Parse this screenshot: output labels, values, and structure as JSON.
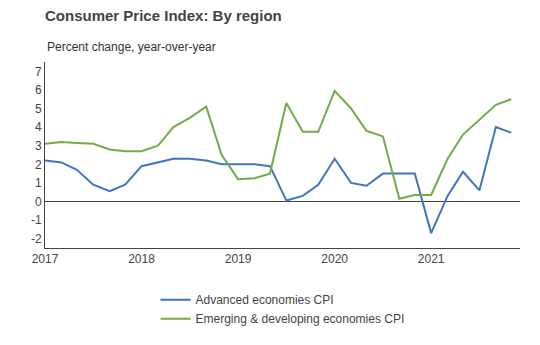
{
  "chart_data": {
    "type": "line",
    "title": "Consumer Price Index: By region",
    "subtitle": "Percent change, year-over-year",
    "x": [
      2017.0,
      2017.17,
      2017.33,
      2017.5,
      2017.67,
      2017.83,
      2018.0,
      2018.17,
      2018.33,
      2018.5,
      2018.67,
      2018.83,
      2019.0,
      2019.17,
      2019.33,
      2019.5,
      2019.67,
      2019.83,
      2020.0,
      2020.17,
      2020.33,
      2020.5,
      2020.67,
      2020.83,
      2021.0,
      2021.17,
      2021.33,
      2021.5,
      2021.67,
      2021.83
    ],
    "series": [
      {
        "name": "Advanced economies CPI",
        "color": "#4472C4",
        "values": [
          2.2,
          2.1,
          1.7,
          0.9,
          0.55,
          0.9,
          1.9,
          2.1,
          2.3,
          2.3,
          2.2,
          2.0,
          2.0,
          2.0,
          1.9,
          0.05,
          0.3,
          0.9,
          2.3,
          1.0,
          0.85,
          1.5,
          1.5,
          1.5,
          -1.7,
          0.3,
          1.6,
          0.6,
          4.0,
          3.7
        ]
      },
      {
        "name": "Emerging & developing economies CPI",
        "color": "#70AD47",
        "values": [
          3.1,
          3.2,
          3.15,
          3.1,
          2.8,
          2.7,
          2.7,
          3.0,
          4.0,
          4.5,
          5.1,
          2.5,
          1.2,
          1.25,
          1.5,
          5.3,
          3.75,
          3.75,
          5.95,
          5.0,
          3.8,
          3.5,
          0.15,
          0.35,
          0.35,
          2.3,
          3.6,
          4.4,
          5.2,
          5.5
        ]
      }
    ],
    "xlim": [
      2017.0,
      2021.92
    ],
    "xticks": [
      2017,
      2018,
      2019,
      2020,
      2021
    ],
    "ylim": [
      -2.5,
      7.5
    ],
    "yticks": [
      -2,
      -1,
      0,
      1,
      2,
      3,
      4,
      5,
      6,
      7
    ],
    "grid": false,
    "legend": "bottom"
  }
}
